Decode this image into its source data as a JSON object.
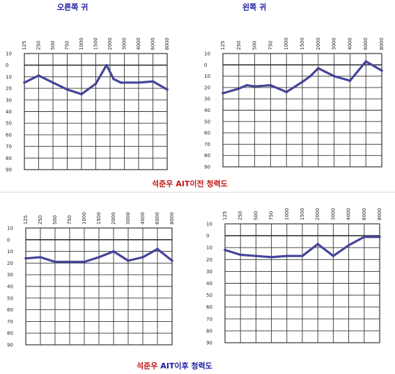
{
  "header": {
    "right_ear": "오른쪽 귀",
    "left_ear": "왼쪽 귀"
  },
  "captions": {
    "before_name": "석준우",
    "before_rest": "AIT이전 청력도",
    "after_name": "석준우",
    "after_rest": "AIT이후 청력도"
  },
  "colors": {
    "curve": "#44449a",
    "caption_blue": "#1a1aa0",
    "caption_red": "#c01818",
    "grid": "#333333"
  },
  "chart_data": [
    {
      "type": "line",
      "title": "오른쪽 귀",
      "frequencies": [
        "125",
        "250",
        "500",
        "750",
        "1000",
        "1500",
        "2000",
        "3000",
        "4000",
        "6000",
        "8000"
      ],
      "hearing_levels_db": [
        "10",
        "0",
        "10",
        "20",
        "30",
        "40",
        "50",
        "60",
        "70",
        "80",
        "90"
      ],
      "series": [
        {
          "points": [
            [
              0,
              15
            ],
            [
              1,
              9
            ],
            [
              2,
              15
            ],
            [
              3,
              21
            ],
            [
              4,
              25
            ],
            [
              5,
              16
            ],
            [
              5.75,
              0
            ],
            [
              6.25,
              12
            ],
            [
              6.75,
              15
            ],
            [
              8,
              15
            ],
            [
              9,
              14
            ],
            [
              10,
              21
            ]
          ]
        }
      ]
    },
    {
      "type": "line",
      "title": "왼쪽 귀",
      "frequencies": [
        "125",
        "250",
        "500",
        "750",
        "1000",
        "1500",
        "2000",
        "3000",
        "4000",
        "6000",
        "8000"
      ],
      "hearing_levels_db": [
        "10",
        "0",
        "10",
        "20",
        "30",
        "40",
        "50",
        "60",
        "70",
        "80",
        "90"
      ],
      "series": [
        {
          "points": [
            [
              0,
              25
            ],
            [
              1,
              21
            ],
            [
              1.5,
              18
            ],
            [
              2,
              19
            ],
            [
              3,
              18
            ],
            [
              4,
              24
            ],
            [
              5,
              15
            ],
            [
              5.5,
              10
            ],
            [
              6,
              3
            ],
            [
              7,
              10
            ],
            [
              8,
              14
            ],
            [
              9,
              -3
            ],
            [
              10,
              5
            ]
          ]
        }
      ]
    },
    {
      "type": "line",
      "title": "석준우 AIT이후 청력도",
      "frequencies": [
        "125",
        "250",
        "500",
        "750",
        "1000",
        "1500",
        "2000",
        "3000",
        "4000",
        "6000",
        "8000"
      ],
      "hearing_levels_db": [
        "10",
        "0",
        "10",
        "20",
        "30",
        "40",
        "50",
        "60",
        "70",
        "80",
        "90"
      ],
      "series": [
        {
          "points": [
            [
              0,
              16
            ],
            [
              1,
              15
            ],
            [
              2,
              19
            ],
            [
              3,
              19
            ],
            [
              4,
              19
            ],
            [
              5,
              15
            ],
            [
              6,
              10
            ],
            [
              7,
              18
            ],
            [
              8,
              15
            ],
            [
              9,
              8
            ],
            [
              10,
              18
            ]
          ]
        }
      ]
    },
    {
      "type": "line",
      "title": "석준우 AIT이후 청력도",
      "frequencies": [
        "125",
        "250",
        "500",
        "750",
        "1000",
        "1500",
        "2000",
        "3000",
        "4000",
        "6000",
        "8000"
      ],
      "hearing_levels_db": [
        "10",
        "0",
        "10",
        "20",
        "30",
        "40",
        "50",
        "60",
        "70",
        "80",
        "90"
      ],
      "series": [
        {
          "points": [
            [
              0,
              12
            ],
            [
              1,
              16
            ],
            [
              2,
              17
            ],
            [
              3,
              18
            ],
            [
              4,
              17
            ],
            [
              5,
              17
            ],
            [
              6,
              7
            ],
            [
              7,
              17
            ],
            [
              8,
              8
            ],
            [
              9,
              1
            ],
            [
              10,
              1
            ]
          ]
        }
      ]
    }
  ]
}
